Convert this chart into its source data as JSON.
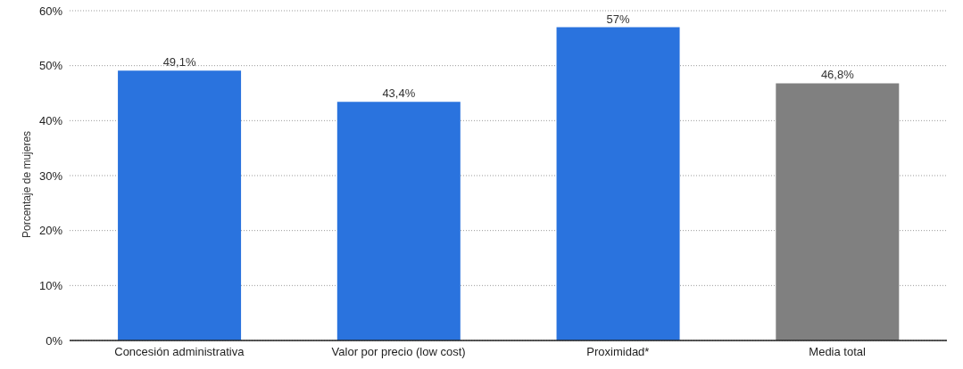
{
  "chart_data": {
    "type": "bar",
    "ylabel": "Porcentaje de mujeres",
    "categories": [
      "Concesión administrativa",
      "Valor por precio (low cost)",
      "Proximidad*",
      "Media total"
    ],
    "values": [
      49.1,
      43.4,
      57,
      46.8
    ],
    "colors": [
      "#2a73de",
      "#2a73de",
      "#2a73de",
      "#808080"
    ],
    "value_labels": [
      "49,1%",
      "43,4%",
      "57%",
      "46,8%"
    ],
    "ylim": [
      0,
      60
    ],
    "yticks": [
      {
        "value": 0,
        "label": "0%"
      },
      {
        "value": 10,
        "label": "10%"
      },
      {
        "value": 20,
        "label": "20%"
      },
      {
        "value": 30,
        "label": "30%"
      },
      {
        "value": 40,
        "label": "40%"
      },
      {
        "value": 50,
        "label": "50%"
      },
      {
        "value": 60,
        "label": "60%"
      }
    ],
    "grid": "y",
    "legend": false
  }
}
